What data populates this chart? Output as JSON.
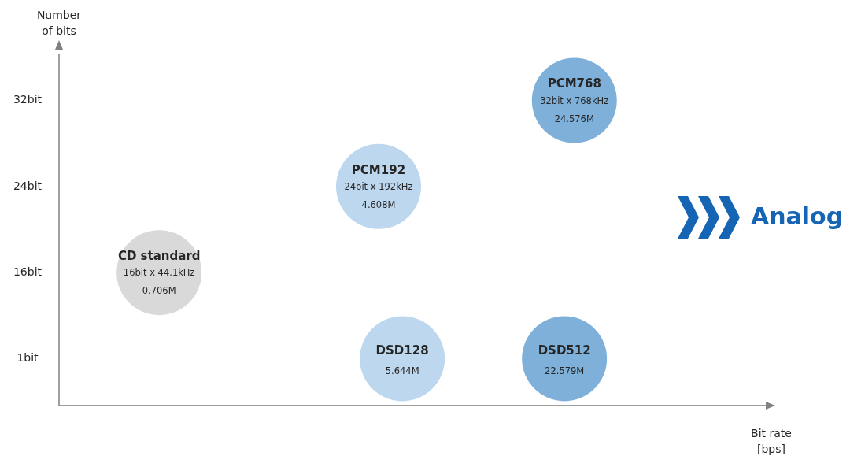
{
  "chart_data": {
    "type": "other",
    "ylabel": "Number of bits",
    "xlabel": "Bit rate [bps]",
    "y_categories": [
      "32bit",
      "24bit",
      "16bit",
      "1bit"
    ],
    "categories": [
      "CD standard",
      "PCM192",
      "DSD128",
      "DSD512",
      "PCM768"
    ],
    "values": [
      0.706,
      4.608,
      5.644,
      22.579,
      24.576
    ],
    "value_labels": [
      "0.706M",
      "4.608M",
      "5.644M",
      "22.579M",
      "24.576M"
    ],
    "colors": [
      "#d9d9d9",
      "#bdd7ee",
      "#bdd7ee",
      "#7eb0da",
      "#7eb0da"
    ],
    "annotations": [
      "16bit x 44.1kHz",
      "24bit x 192kHz",
      "32bit x 768kHz",
      "Analog"
    ]
  }
}
